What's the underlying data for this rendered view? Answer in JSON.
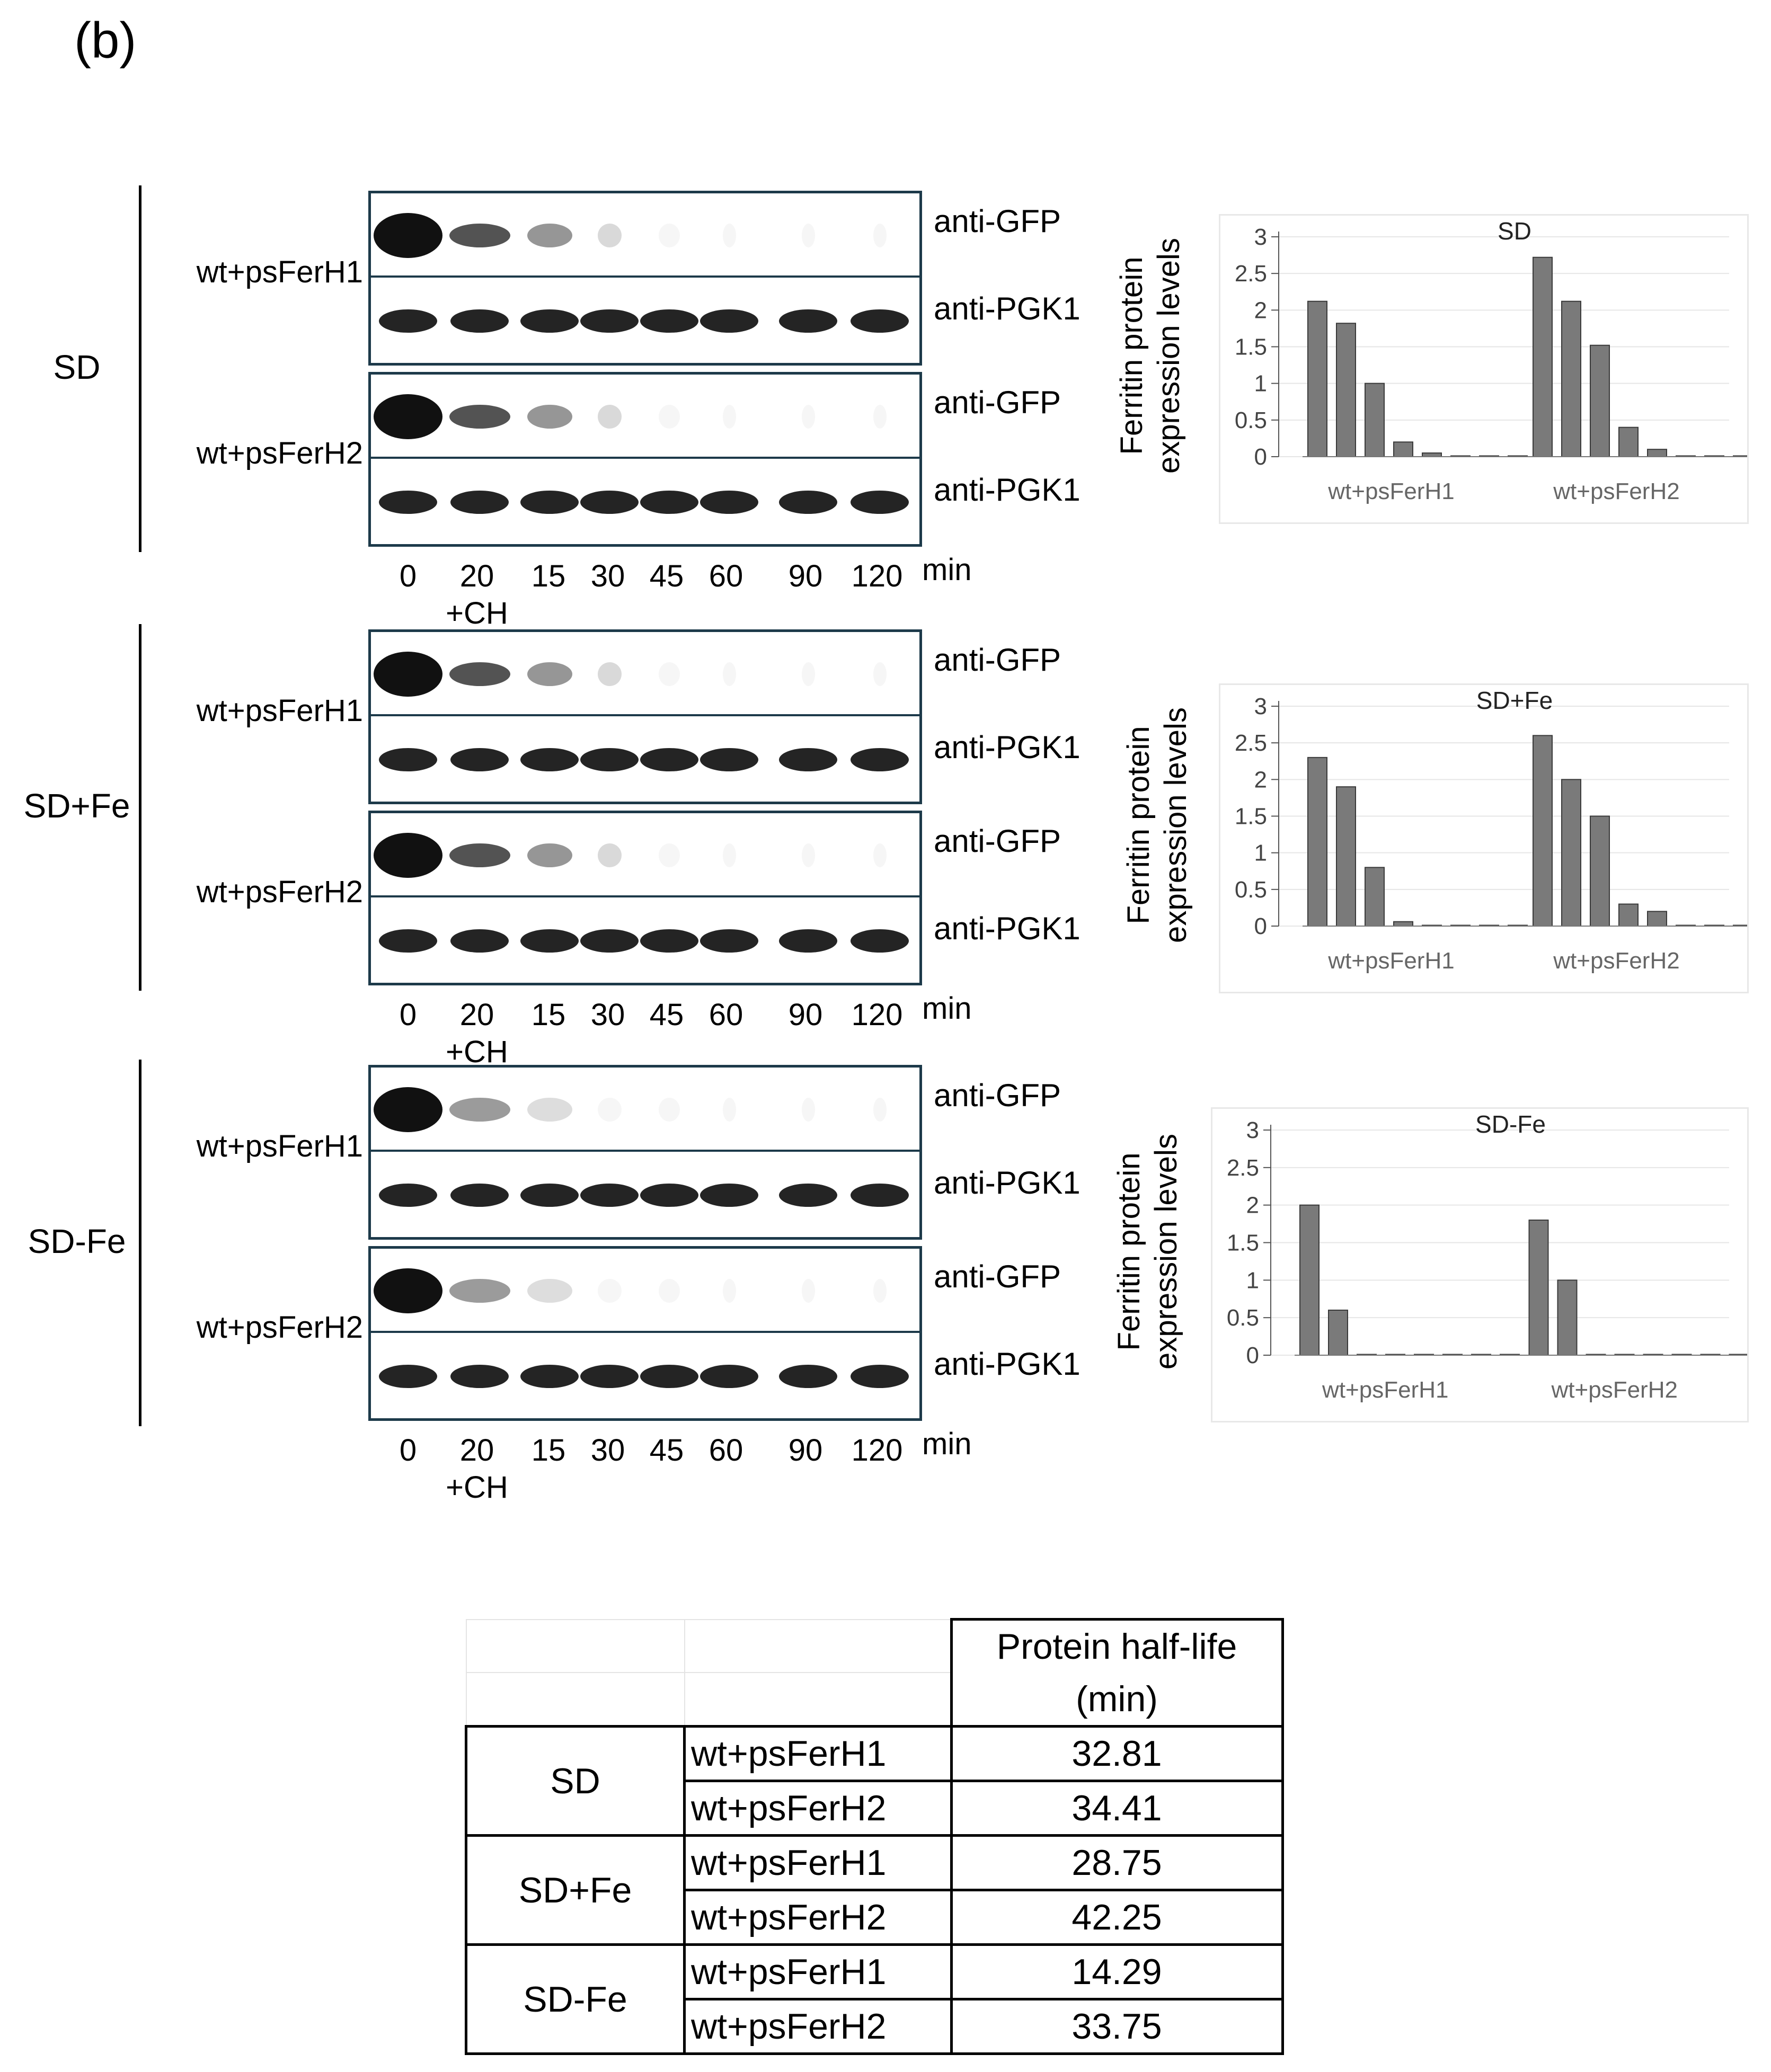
{
  "figure": {
    "panel_label": "(b)",
    "conditions": [
      {
        "name": "SD",
        "samples": [
          {
            "label": "wt+psFerH1",
            "antibodies": [
              "anti-GFP",
              "anti-PGK1"
            ]
          },
          {
            "label": "wt+psFerH2",
            "antibodies": [
              "anti-GFP",
              "anti-PGK1"
            ]
          }
        ],
        "timepoints": [
          "0",
          "20",
          "15",
          "30",
          "45",
          "60",
          "90",
          "120"
        ],
        "timepoint_note": "+CH",
        "time_unit": "min"
      },
      {
        "name": "SD+Fe",
        "samples": [
          {
            "label": "wt+psFerH1",
            "antibodies": [
              "anti-GFP",
              "anti-PGK1"
            ]
          },
          {
            "label": "wt+psFerH2",
            "antibodies": [
              "anti-GFP",
              "anti-PGK1"
            ]
          }
        ],
        "timepoints": [
          "0",
          "20",
          "15",
          "30",
          "45",
          "60",
          "90",
          "120"
        ],
        "timepoint_note": "+CH",
        "time_unit": "min"
      },
      {
        "name": "SD-Fe",
        "samples": [
          {
            "label": "wt+psFerH1",
            "antibodies": [
              "anti-GFP",
              "anti-PGK1"
            ]
          },
          {
            "label": "wt+psFerH2",
            "antibodies": [
              "anti-GFP",
              "anti-PGK1"
            ]
          }
        ],
        "timepoints": [
          "0",
          "20",
          "15",
          "30",
          "45",
          "60",
          "90",
          "120"
        ],
        "timepoint_note": "+CH",
        "time_unit": "min"
      }
    ]
  },
  "chart_data": [
    {
      "type": "bar",
      "title": "SD",
      "ylabel": "Ferritin protein expression levels",
      "ylabel_lines": [
        "Ferritin protein",
        "expression levels"
      ],
      "ylim": [
        0,
        3
      ],
      "yticks": [
        "0",
        "0.5",
        "1",
        "1.5",
        "2",
        "2.5",
        "3"
      ],
      "groups": [
        {
          "name": "wt+psFerH1",
          "values": [
            2.12,
            1.82,
            1.0,
            0.2,
            0.05,
            0,
            0,
            0
          ]
        },
        {
          "name": "wt+psFerH2",
          "values": [
            2.72,
            2.12,
            1.52,
            0.4,
            0.1,
            0,
            0,
            0
          ]
        }
      ],
      "colors": {
        "bar": "#7a7a7a"
      }
    },
    {
      "type": "bar",
      "title": "SD+Fe",
      "ylabel": "Ferritin protein expression levels",
      "ylabel_lines": [
        "Ferritin protein",
        "expression levels"
      ],
      "ylim": [
        0,
        3
      ],
      "yticks": [
        "0",
        "0.5",
        "1",
        "1.5",
        "2",
        "2.5",
        "3"
      ],
      "groups": [
        {
          "name": "wt+psFerH1",
          "values": [
            2.3,
            1.9,
            0.8,
            0.06,
            0,
            0,
            0,
            0
          ]
        },
        {
          "name": "wt+psFerH2",
          "values": [
            2.6,
            2.0,
            1.5,
            0.3,
            0.2,
            0,
            0,
            0
          ]
        }
      ],
      "colors": {
        "bar": "#7a7a7a"
      }
    },
    {
      "type": "bar",
      "title": "SD-Fe",
      "ylabel": "Ferritin protein expression levels",
      "ylabel_lines": [
        "Ferritin protein",
        "expression levels"
      ],
      "ylim": [
        0,
        3
      ],
      "yticks": [
        "0",
        "0.5",
        "1",
        "1.5",
        "2",
        "2.5",
        "3"
      ],
      "groups": [
        {
          "name": "wt+psFerH1",
          "values": [
            2.0,
            0.6,
            0,
            0,
            0,
            0,
            0,
            0
          ]
        },
        {
          "name": "wt+psFerH2",
          "values": [
            1.8,
            1.0,
            0,
            0,
            0,
            0,
            0,
            0
          ]
        }
      ],
      "colors": {
        "bar": "#7a7a7a"
      }
    }
  ],
  "table": {
    "header": [
      "Protein half-life",
      "(min)"
    ],
    "rows": [
      {
        "condition": "SD",
        "strain": "wt+psFerH1",
        "half_life": "32.81"
      },
      {
        "condition": "SD",
        "strain": "wt+psFerH2",
        "half_life": "34.41"
      },
      {
        "condition": "SD+Fe",
        "strain": "wt+psFerH1",
        "half_life": "28.75"
      },
      {
        "condition": "SD+Fe",
        "strain": "wt+psFerH2",
        "half_life": "42.25"
      },
      {
        "condition": "SD-Fe",
        "strain": "wt+psFerH1",
        "half_life": "14.29"
      },
      {
        "condition": "SD-Fe",
        "strain": "wt+psFerH2",
        "half_life": "33.75"
      }
    ]
  }
}
